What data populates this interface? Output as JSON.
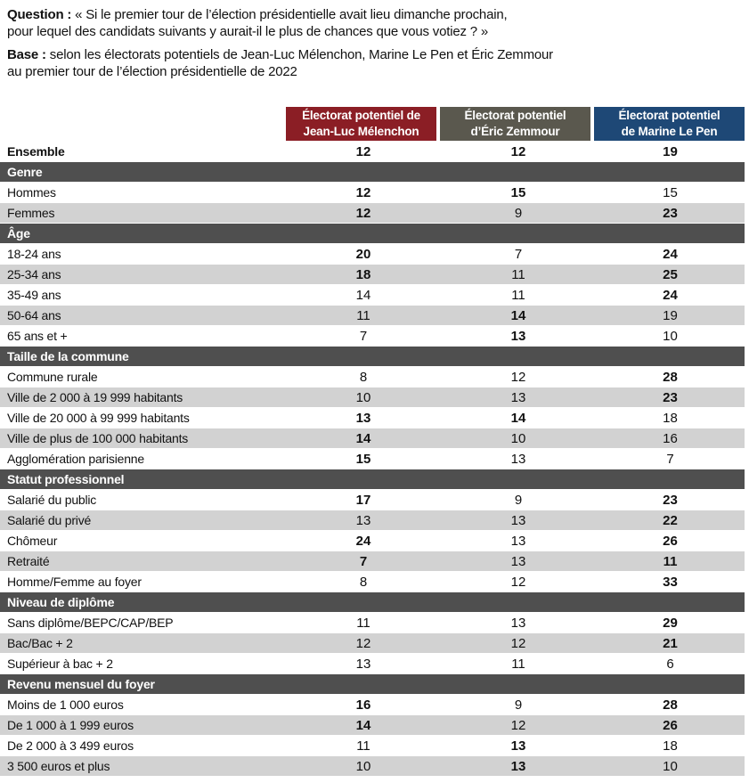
{
  "intro": {
    "question_label": "Question :",
    "question_text": "« Si le premier tour de l’élection présidentielle avait lieu dimanche prochain,\npour lequel des candidats suivants y aurait-il le plus de chances que vous votiez ? »",
    "base_label": "Base :",
    "base_text": "selon les électorats potentiels de Jean-Luc Mélenchon, Marine Le Pen et Éric Zemmour\nau premier tour de l’élection présidentielle de 2022"
  },
  "colors": {
    "melenchon": "#8B1E25",
    "zemmour": "#5A584E",
    "lepen": "#1E4876",
    "section_bar": "#4F4F4F",
    "stripe": "#D2D2D2"
  },
  "table": {
    "columns": [
      {
        "label": "Électorat potentiel de\nJean-Luc Mélenchon",
        "color_key": "melenchon"
      },
      {
        "label": "Électorat potentiel\nd’Éric Zemmour",
        "color_key": "zemmour"
      },
      {
        "label": "Électorat potentiel\nde Marine Le Pen",
        "color_key": "lepen"
      }
    ],
    "rows": [
      {
        "type": "total",
        "label": "Ensemble",
        "values": [
          "12",
          "12",
          "19"
        ],
        "bold": [
          true,
          true,
          true
        ]
      },
      {
        "type": "section",
        "label": "Genre"
      },
      {
        "type": "data",
        "label": "Hommes",
        "values": [
          "12",
          "15",
          "15"
        ],
        "bold": [
          true,
          true,
          false
        ]
      },
      {
        "type": "data",
        "label": "Femmes",
        "values": [
          "12",
          "9",
          "23"
        ],
        "bold": [
          true,
          false,
          true
        ]
      },
      {
        "type": "section",
        "label": "Âge"
      },
      {
        "type": "data",
        "label": "18-24 ans",
        "values": [
          "20",
          "7",
          "24"
        ],
        "bold": [
          true,
          false,
          true
        ]
      },
      {
        "type": "data",
        "label": "25-34 ans",
        "values": [
          "18",
          "11",
          "25"
        ],
        "bold": [
          true,
          false,
          true
        ]
      },
      {
        "type": "data",
        "label": "35-49 ans",
        "values": [
          "14",
          "11",
          "24"
        ],
        "bold": [
          false,
          false,
          true
        ]
      },
      {
        "type": "data",
        "label": "50-64 ans",
        "values": [
          "11",
          "14",
          "19"
        ],
        "bold": [
          false,
          true,
          false
        ]
      },
      {
        "type": "data",
        "label": "65 ans et +",
        "values": [
          "7",
          "13",
          "10"
        ],
        "bold": [
          false,
          true,
          false
        ]
      },
      {
        "type": "section",
        "label": "Taille de la commune"
      },
      {
        "type": "data",
        "label": "Commune rurale",
        "values": [
          "8",
          "12",
          "28"
        ],
        "bold": [
          false,
          false,
          true
        ]
      },
      {
        "type": "data",
        "label": "Ville de 2 000 à 19 999 habitants",
        "values": [
          "10",
          "13",
          "23"
        ],
        "bold": [
          false,
          false,
          true
        ]
      },
      {
        "type": "data",
        "label": "Ville de 20 000 à 99 999 habitants",
        "values": [
          "13",
          "14",
          "18"
        ],
        "bold": [
          true,
          true,
          false
        ]
      },
      {
        "type": "data",
        "label": "Ville de plus de 100 000 habitants",
        "values": [
          "14",
          "10",
          "16"
        ],
        "bold": [
          true,
          false,
          false
        ]
      },
      {
        "type": "data",
        "label": "Agglomération parisienne",
        "values": [
          "15",
          "13",
          "7"
        ],
        "bold": [
          true,
          false,
          false
        ]
      },
      {
        "type": "section",
        "label": "Statut professionnel"
      },
      {
        "type": "data",
        "label": "Salarié du public",
        "values": [
          "17",
          "9",
          "23"
        ],
        "bold": [
          true,
          false,
          true
        ]
      },
      {
        "type": "data",
        "label": "Salarié du privé",
        "values": [
          "13",
          "13",
          "22"
        ],
        "bold": [
          false,
          false,
          true
        ]
      },
      {
        "type": "data",
        "label": "Chômeur",
        "values": [
          "24",
          "13",
          "26"
        ],
        "bold": [
          true,
          false,
          true
        ]
      },
      {
        "type": "data",
        "label": "Retraité",
        "values": [
          "7",
          "13",
          "11"
        ],
        "bold": [
          true,
          false,
          true
        ]
      },
      {
        "type": "data",
        "label": "Homme/Femme au foyer",
        "values": [
          "8",
          "12",
          "33"
        ],
        "bold": [
          false,
          false,
          true
        ]
      },
      {
        "type": "section",
        "label": "Niveau de diplôme"
      },
      {
        "type": "data",
        "label": "Sans diplôme/BEPC/CAP/BEP",
        "values": [
          "11",
          "13",
          "29"
        ],
        "bold": [
          false,
          false,
          true
        ]
      },
      {
        "type": "data",
        "label": "Bac/Bac + 2",
        "values": [
          "12",
          "12",
          "21"
        ],
        "bold": [
          false,
          false,
          true
        ]
      },
      {
        "type": "data",
        "label": "Supérieur à bac + 2",
        "values": [
          "13",
          "11",
          "6"
        ],
        "bold": [
          false,
          false,
          false
        ]
      },
      {
        "type": "section",
        "label": "Revenu mensuel du foyer"
      },
      {
        "type": "data",
        "label": "Moins de 1 000 euros",
        "values": [
          "16",
          "9",
          "28"
        ],
        "bold": [
          true,
          false,
          true
        ]
      },
      {
        "type": "data",
        "label": "De 1 000 à 1 999 euros",
        "values": [
          "14",
          "12",
          "26"
        ],
        "bold": [
          true,
          false,
          true
        ]
      },
      {
        "type": "data",
        "label": "De 2 000 à 3 499 euros",
        "values": [
          "11",
          "13",
          "18"
        ],
        "bold": [
          false,
          true,
          false
        ]
      },
      {
        "type": "data",
        "label": "3 500 euros et plus",
        "values": [
          "10",
          "13",
          "10"
        ],
        "bold": [
          false,
          true,
          false
        ]
      }
    ]
  },
  "chart_data": {
    "type": "table",
    "title": "Question : « Si le premier tour de l’élection présidentielle avait lieu dimanche prochain, pour lequel des candidats suivants y aurait-il le plus de chances que vous votiez ? »",
    "subtitle": "Base : selon les électorats potentiels de Jean-Luc Mélenchon, Marine Le Pen et Éric Zemmour au premier tour de l’élection présidentielle de 2022",
    "columns": [
      "Électorat potentiel de Jean-Luc Mélenchon",
      "Électorat potentiel d’Éric Zemmour",
      "Électorat potentiel de Marine Le Pen"
    ],
    "sections": [
      {
        "name": "",
        "rows": [
          {
            "label": "Ensemble",
            "values": [
              12,
              12,
              19
            ]
          }
        ]
      },
      {
        "name": "Genre",
        "rows": [
          {
            "label": "Hommes",
            "values": [
              12,
              15,
              15
            ]
          },
          {
            "label": "Femmes",
            "values": [
              12,
              9,
              23
            ]
          }
        ]
      },
      {
        "name": "Âge",
        "rows": [
          {
            "label": "18-24 ans",
            "values": [
              20,
              7,
              24
            ]
          },
          {
            "label": "25-34 ans",
            "values": [
              18,
              11,
              25
            ]
          },
          {
            "label": "35-49 ans",
            "values": [
              14,
              11,
              24
            ]
          },
          {
            "label": "50-64 ans",
            "values": [
              11,
              14,
              19
            ]
          },
          {
            "label": "65 ans et +",
            "values": [
              7,
              13,
              10
            ]
          }
        ]
      },
      {
        "name": "Taille de la commune",
        "rows": [
          {
            "label": "Commune rurale",
            "values": [
              8,
              12,
              28
            ]
          },
          {
            "label": "Ville de 2 000 à 19 999 habitants",
            "values": [
              10,
              13,
              23
            ]
          },
          {
            "label": "Ville de 20 000 à 99 999 habitants",
            "values": [
              13,
              14,
              18
            ]
          },
          {
            "label": "Ville de plus de 100 000 habitants",
            "values": [
              14,
              10,
              16
            ]
          },
          {
            "label": "Agglomération parisienne",
            "values": [
              15,
              13,
              7
            ]
          }
        ]
      },
      {
        "name": "Statut professionnel",
        "rows": [
          {
            "label": "Salarié du public",
            "values": [
              17,
              9,
              23
            ]
          },
          {
            "label": "Salarié du privé",
            "values": [
              13,
              13,
              22
            ]
          },
          {
            "label": "Chômeur",
            "values": [
              24,
              13,
              26
            ]
          },
          {
            "label": "Retraité",
            "values": [
              7,
              13,
              11
            ]
          },
          {
            "label": "Homme/Femme au foyer",
            "values": [
              8,
              12,
              33
            ]
          }
        ]
      },
      {
        "name": "Niveau de diplôme",
        "rows": [
          {
            "label": "Sans diplôme/BEPC/CAP/BEP",
            "values": [
              11,
              13,
              29
            ]
          },
          {
            "label": "Bac/Bac + 2",
            "values": [
              12,
              12,
              21
            ]
          },
          {
            "label": "Supérieur à bac + 2",
            "values": [
              13,
              11,
              6
            ]
          }
        ]
      },
      {
        "name": "Revenu mensuel du foyer",
        "rows": [
          {
            "label": "Moins de 1 000 euros",
            "values": [
              16,
              9,
              28
            ]
          },
          {
            "label": "De 1 000 à 1 999 euros",
            "values": [
              14,
              12,
              26
            ]
          },
          {
            "label": "De 2 000 à 3 499 euros",
            "values": [
              11,
              13,
              18
            ]
          },
          {
            "label": "3 500 euros et plus",
            "values": [
              10,
              13,
              10
            ]
          }
        ]
      }
    ]
  }
}
